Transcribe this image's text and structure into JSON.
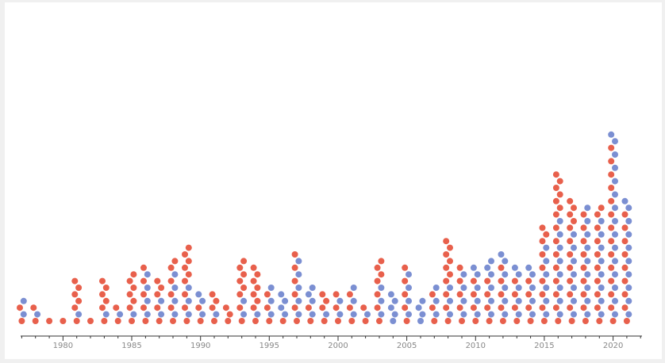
{
  "chart_data": {
    "type": "scatter",
    "subtype": "beeswarm",
    "title": "",
    "xlabel": "",
    "ylabel": "",
    "xlim": [
      1977,
      2022
    ],
    "x_ticks": [
      1980,
      1985,
      1990,
      1995,
      2000,
      2005,
      2010,
      2015,
      2020
    ],
    "grid": false,
    "legend": "none",
    "colors": {
      "blue": "#7b8fd2",
      "red": "#e8604c"
    },
    "series": [
      {
        "color": "#7b8fd2",
        "counts": [
          2,
          1,
          0,
          0,
          1,
          0,
          1,
          1,
          1,
          4,
          2,
          4,
          3,
          3,
          1,
          0,
          2,
          1,
          3,
          4,
          5,
          4,
          1,
          2,
          3,
          1,
          3,
          5,
          4,
          4,
          3,
          3,
          4,
          5,
          6,
          6,
          5,
          5,
          6,
          8,
          7,
          9,
          8,
          15,
          10
        ]
      },
      {
        "color": "#e8604c",
        "counts": [
          2,
          2,
          1,
          1,
          6,
          1,
          6,
          2,
          7,
          5,
          5,
          6,
          9,
          2,
          4,
          3,
          8,
          8,
          3,
          1,
          6,
          2,
          4,
          3,
          3,
          2,
          7,
          0,
          5,
          0,
          3,
          10,
          5,
          4,
          4,
          5,
          4,
          4,
          9,
          15,
          12,
          9,
          10,
          14,
          9
        ]
      }
    ]
  }
}
